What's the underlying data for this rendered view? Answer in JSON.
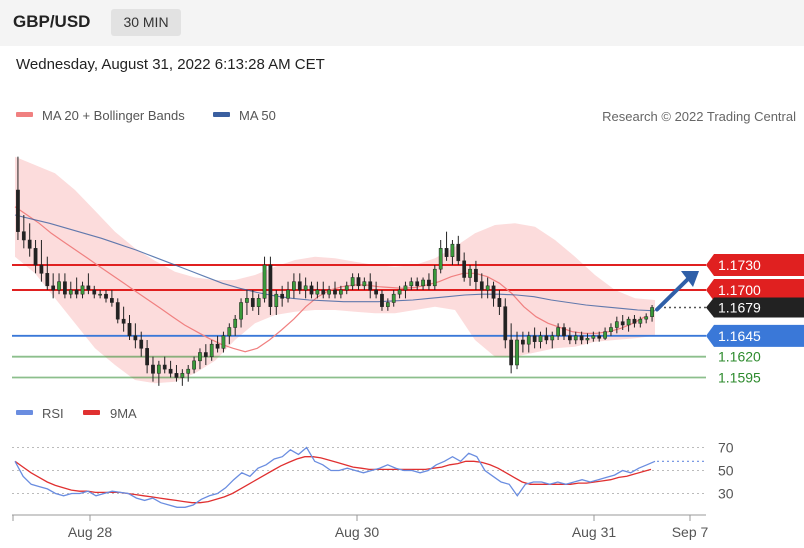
{
  "header": {
    "pair": "GBP/USD",
    "timeframe": "30 MIN",
    "datetime": "Wednesday, August 31, 2022 6:13:28 AM CET"
  },
  "legend": {
    "ma20_label": "MA 20 + Bollinger Bands",
    "ma50_label": "MA 50",
    "copyright": "Research © 2022 Trading Central",
    "ma20_color": "#f08080",
    "ma50_color": "#3a5fa0"
  },
  "rsi_legend": {
    "rsi_label": "RSI",
    "ma9_label": "9MA",
    "rsi_color": "#6a8de0",
    "ma9_color": "#e03030"
  },
  "chart_data": [
    {
      "type": "candlestick",
      "ylim": [
        1.158,
        1.188
      ],
      "x_ticks": [
        "Aug 28",
        "Aug 30",
        "Aug 31",
        "Sep 7"
      ],
      "current_price": {
        "value": 1.1679,
        "label": "1.1679",
        "color": "#222222"
      },
      "levels": [
        {
          "value": 1.173,
          "label": "1.1730",
          "kind": "resistance",
          "color": "#e02020"
        },
        {
          "value": 1.17,
          "label": "1.1700",
          "kind": "resistance",
          "color": "#e02020"
        },
        {
          "value": 1.1645,
          "label": "1.1645",
          "kind": "pivot",
          "color": "#3a78d8"
        },
        {
          "value": 1.162,
          "label": "1.1620",
          "kind": "support",
          "color": "#2e8b2e"
        },
        {
          "value": 1.1595,
          "label": "1.1595",
          "kind": "support",
          "color": "#2e8b2e"
        }
      ],
      "ohlc": [
        [
          1.182,
          1.186,
          1.176,
          1.177
        ],
        [
          1.177,
          1.179,
          1.175,
          1.176
        ],
        [
          1.176,
          1.178,
          1.174,
          1.175
        ],
        [
          1.175,
          1.176,
          1.172,
          1.173
        ],
        [
          1.173,
          1.176,
          1.171,
          1.172
        ],
        [
          1.172,
          1.174,
          1.17,
          1.1705
        ],
        [
          1.1705,
          1.172,
          1.169,
          1.17
        ],
        [
          1.17,
          1.172,
          1.1695,
          1.171
        ],
        [
          1.171,
          1.172,
          1.169,
          1.1695
        ],
        [
          1.1695,
          1.171,
          1.169,
          1.17
        ],
        [
          1.17,
          1.1715,
          1.169,
          1.1695
        ],
        [
          1.1695,
          1.171,
          1.169,
          1.1705
        ],
        [
          1.1705,
          1.172,
          1.1695,
          1.17
        ],
        [
          1.17,
          1.1705,
          1.169,
          1.1695
        ],
        [
          1.1695,
          1.17,
          1.169,
          1.1695
        ],
        [
          1.1695,
          1.17,
          1.1685,
          1.169
        ],
        [
          1.169,
          1.17,
          1.168,
          1.1685
        ],
        [
          1.1685,
          1.169,
          1.166,
          1.1665
        ],
        [
          1.1665,
          1.168,
          1.165,
          1.166
        ],
        [
          1.166,
          1.167,
          1.164,
          1.1645
        ],
        [
          1.1645,
          1.166,
          1.163,
          1.164
        ],
        [
          1.164,
          1.165,
          1.162,
          1.163
        ],
        [
          1.163,
          1.164,
          1.16,
          1.161
        ],
        [
          1.161,
          1.162,
          1.159,
          1.16
        ],
        [
          1.16,
          1.1615,
          1.1585,
          1.161
        ],
        [
          1.161,
          1.162,
          1.16,
          1.1605
        ],
        [
          1.1605,
          1.1615,
          1.1595,
          1.16
        ],
        [
          1.16,
          1.161,
          1.159,
          1.1595
        ],
        [
          1.1595,
          1.1605,
          1.1585,
          1.16
        ],
        [
          1.16,
          1.161,
          1.159,
          1.1605
        ],
        [
          1.1605,
          1.162,
          1.16,
          1.1615
        ],
        [
          1.1615,
          1.163,
          1.1605,
          1.1625
        ],
        [
          1.1625,
          1.1635,
          1.161,
          1.162
        ],
        [
          1.162,
          1.164,
          1.1615,
          1.1635
        ],
        [
          1.1635,
          1.1645,
          1.1625,
          1.163
        ],
        [
          1.163,
          1.165,
          1.1625,
          1.1645
        ],
        [
          1.1645,
          1.166,
          1.1635,
          1.1655
        ],
        [
          1.1655,
          1.167,
          1.1645,
          1.1665
        ],
        [
          1.1665,
          1.169,
          1.1655,
          1.1685
        ],
        [
          1.1685,
          1.17,
          1.167,
          1.169
        ],
        [
          1.169,
          1.17,
          1.1675,
          1.168
        ],
        [
          1.168,
          1.1695,
          1.167,
          1.169
        ],
        [
          1.169,
          1.174,
          1.1685,
          1.173
        ],
        [
          1.173,
          1.174,
          1.167,
          1.168
        ],
        [
          1.168,
          1.17,
          1.167,
          1.1695
        ],
        [
          1.1695,
          1.1705,
          1.168,
          1.169
        ],
        [
          1.169,
          1.171,
          1.1685,
          1.17
        ],
        [
          1.17,
          1.172,
          1.169,
          1.171
        ],
        [
          1.171,
          1.172,
          1.1695,
          1.17
        ],
        [
          1.17,
          1.1715,
          1.169,
          1.1705
        ],
        [
          1.1705,
          1.171,
          1.169,
          1.1695
        ],
        [
          1.1695,
          1.171,
          1.169,
          1.17
        ],
        [
          1.17,
          1.171,
          1.169,
          1.1695
        ],
        [
          1.1695,
          1.1705,
          1.169,
          1.17
        ],
        [
          1.17,
          1.171,
          1.169,
          1.1695
        ],
        [
          1.1695,
          1.1705,
          1.169,
          1.17
        ],
        [
          1.17,
          1.171,
          1.1695,
          1.1705
        ],
        [
          1.1705,
          1.172,
          1.17,
          1.1715
        ],
        [
          1.1715,
          1.172,
          1.17,
          1.1705
        ],
        [
          1.1705,
          1.1715,
          1.17,
          1.171
        ],
        [
          1.171,
          1.172,
          1.169,
          1.17
        ],
        [
          1.17,
          1.171,
          1.169,
          1.1695
        ],
        [
          1.1695,
          1.17,
          1.1675,
          1.168
        ],
        [
          1.168,
          1.169,
          1.1675,
          1.1685
        ],
        [
          1.1685,
          1.17,
          1.168,
          1.1695
        ],
        [
          1.1695,
          1.1705,
          1.169,
          1.17
        ],
        [
          1.17,
          1.171,
          1.169,
          1.1705
        ],
        [
          1.1705,
          1.1715,
          1.17,
          1.171
        ],
        [
          1.171,
          1.1715,
          1.17,
          1.1705
        ],
        [
          1.1705,
          1.1715,
          1.17,
          1.1712
        ],
        [
          1.1712,
          1.172,
          1.17,
          1.1705
        ],
        [
          1.1705,
          1.173,
          1.17,
          1.1725
        ],
        [
          1.1725,
          1.176,
          1.172,
          1.175
        ],
        [
          1.175,
          1.177,
          1.1735,
          1.174
        ],
        [
          1.174,
          1.176,
          1.173,
          1.1755
        ],
        [
          1.1755,
          1.1765,
          1.173,
          1.1735
        ],
        [
          1.1735,
          1.1745,
          1.171,
          1.1715
        ],
        [
          1.1715,
          1.173,
          1.1705,
          1.1725
        ],
        [
          1.1725,
          1.1735,
          1.17,
          1.171
        ],
        [
          1.171,
          1.172,
          1.169,
          1.17
        ],
        [
          1.17,
          1.1715,
          1.169,
          1.1705
        ],
        [
          1.1705,
          1.171,
          1.168,
          1.169
        ],
        [
          1.169,
          1.17,
          1.167,
          1.168
        ],
        [
          1.168,
          1.169,
          1.163,
          1.164
        ],
        [
          1.164,
          1.166,
          1.16,
          1.161
        ],
        [
          1.161,
          1.165,
          1.1605,
          1.164
        ],
        [
          1.164,
          1.165,
          1.1625,
          1.1635
        ],
        [
          1.1635,
          1.165,
          1.1625,
          1.1645
        ],
        [
          1.1645,
          1.1655,
          1.163,
          1.1638
        ],
        [
          1.1638,
          1.165,
          1.163,
          1.1645
        ],
        [
          1.1645,
          1.1655,
          1.1635,
          1.164
        ],
        [
          1.164,
          1.165,
          1.163,
          1.1645
        ],
        [
          1.1645,
          1.166,
          1.164,
          1.1655
        ],
        [
          1.1655,
          1.166,
          1.164,
          1.1645
        ],
        [
          1.1645,
          1.1655,
          1.1635,
          1.164
        ],
        [
          1.164,
          1.165,
          1.1635,
          1.1645
        ],
        [
          1.1645,
          1.165,
          1.1635,
          1.164
        ],
        [
          1.164,
          1.1648,
          1.1635,
          1.1642
        ],
        [
          1.1642,
          1.165,
          1.1638,
          1.1645
        ],
        [
          1.1645,
          1.165,
          1.1638,
          1.1642
        ],
        [
          1.1642,
          1.1655,
          1.164,
          1.165
        ],
        [
          1.165,
          1.166,
          1.1645,
          1.1655
        ],
        [
          1.1655,
          1.1668,
          1.1648,
          1.1662
        ],
        [
          1.1662,
          1.167,
          1.1652,
          1.1658
        ],
        [
          1.1658,
          1.1668,
          1.165,
          1.1665
        ],
        [
          1.1665,
          1.167,
          1.1655,
          1.166
        ],
        [
          1.166,
          1.1668,
          1.1655,
          1.1665
        ],
        [
          1.1665,
          1.1672,
          1.166,
          1.1668
        ],
        [
          1.1668,
          1.1682,
          1.1662,
          1.1679
        ]
      ],
      "ma20": [
        1.18,
        1.179,
        1.178,
        1.1768,
        1.1758,
        1.1748,
        1.1738,
        1.1728,
        1.1718,
        1.1708,
        1.1698,
        1.1688,
        1.1678,
        1.1668,
        1.1658,
        1.165,
        1.1642,
        1.1635,
        1.163,
        1.1626,
        1.163,
        1.164,
        1.1652,
        1.1665,
        1.168,
        1.1692,
        1.17,
        1.1704,
        1.1706,
        1.1706,
        1.1704,
        1.1703,
        1.1702,
        1.1703,
        1.1706,
        1.171,
        1.1716,
        1.172,
        1.172,
        1.1716,
        1.1708,
        1.1696,
        1.168,
        1.1668,
        1.166,
        1.1655,
        1.165,
        1.1648,
        1.1648,
        1.165,
        1.1654,
        1.166,
        1.1668
      ],
      "ma50": [
        1.179,
        1.1785,
        1.178,
        1.1774,
        1.1768,
        1.1762,
        1.1755,
        1.1748,
        1.174,
        1.1732,
        1.1724,
        1.1716,
        1.1708,
        1.1702,
        1.1697,
        1.1693,
        1.169,
        1.1688,
        1.1687,
        1.1686,
        1.1686,
        1.1686,
        1.1687,
        1.1688,
        1.169,
        1.1692,
        1.1694,
        1.1695,
        1.1695,
        1.1694,
        1.1692,
        1.1688,
        1.1685,
        1.1682,
        1.168,
        1.1678,
        1.1676,
        1.1675
      ],
      "bb_upper": [
        1.186,
        1.185,
        1.184,
        1.182,
        1.1795,
        1.177,
        1.175,
        1.1735,
        1.1722,
        1.1715,
        1.1712,
        1.1712,
        1.1718,
        1.1728,
        1.1736,
        1.174,
        1.1738,
        1.1734,
        1.173,
        1.1728,
        1.173,
        1.1738,
        1.1752,
        1.1768,
        1.1778,
        1.178,
        1.1776,
        1.176,
        1.174,
        1.1718,
        1.17,
        1.169,
        1.1688
      ],
      "bb_lower": [
        1.174,
        1.172,
        1.169,
        1.166,
        1.163,
        1.161,
        1.1592,
        1.1588,
        1.159,
        1.16,
        1.1615,
        1.164,
        1.166,
        1.167,
        1.1674,
        1.1676,
        1.1676,
        1.1674,
        1.1672,
        1.1672,
        1.1676,
        1.168,
        1.1676,
        1.164,
        1.162,
        1.162,
        1.1625,
        1.163,
        1.1632,
        1.1638,
        1.164,
        1.1642,
        1.1645
      ]
    },
    {
      "type": "line",
      "ylim": [
        20,
        80
      ],
      "y_ticks": [
        70,
        50,
        30
      ],
      "series": [
        {
          "name": "RSI",
          "values": [
            58,
            45,
            38,
            36,
            34,
            30,
            28,
            30,
            30,
            32,
            28,
            30,
            32,
            31,
            30,
            26,
            24,
            26,
            22,
            20,
            18,
            18,
            20,
            25,
            28,
            30,
            35,
            42,
            48,
            45,
            52,
            55,
            60,
            62,
            68,
            64,
            70,
            58,
            55,
            50,
            50,
            52,
            50,
            48,
            50,
            52,
            55,
            52,
            50,
            50,
            48,
            50,
            55,
            58,
            62,
            58,
            65,
            62,
            50,
            45,
            40,
            38,
            28,
            38,
            40,
            40,
            38,
            40,
            38,
            40,
            42,
            40,
            42,
            44,
            46,
            50,
            48,
            52,
            55,
            58
          ]
        },
        {
          "name": "9MA",
          "values": [
            58,
            53,
            48,
            44,
            40,
            37,
            35,
            33,
            32,
            32,
            31,
            31,
            31,
            31,
            30,
            29,
            28,
            27,
            26,
            25,
            24,
            23,
            22,
            22,
            23,
            25,
            27,
            30,
            34,
            38,
            42,
            46,
            50,
            54,
            57,
            60,
            62,
            62,
            61,
            59,
            57,
            55,
            53,
            52,
            51,
            51,
            51,
            51,
            51,
            51,
            51,
            51,
            52,
            53,
            55,
            56,
            58,
            58,
            57,
            55,
            52,
            48,
            44,
            40,
            38,
            38,
            38,
            38,
            38,
            38,
            39,
            39,
            40,
            41,
            42,
            44,
            45,
            47,
            49,
            51
          ]
        }
      ]
    }
  ]
}
